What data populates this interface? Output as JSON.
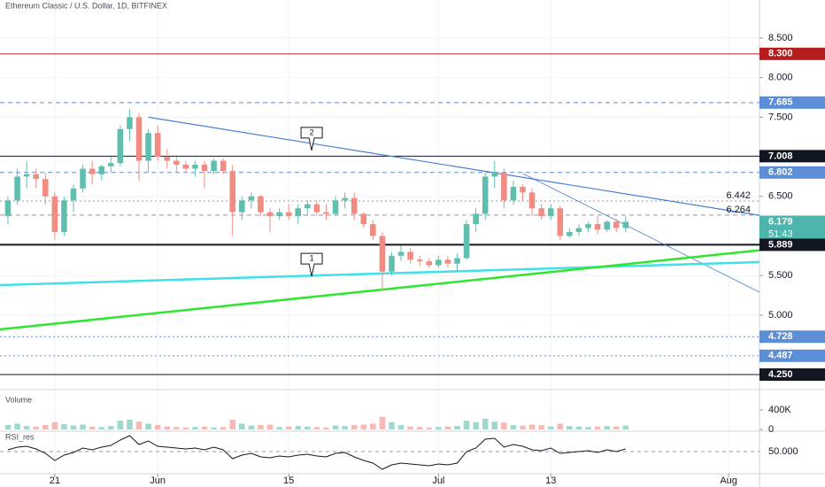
{
  "chart_data": {
    "type": "candlestick",
    "title": "Ethereum Classic / U.S. Dollar, 1D, BITFINEX",
    "up_color": "#5fbfae",
    "down_color": "#f28b82",
    "grid": true,
    "xlim": [
      -0.85,
      80.3
    ],
    "xticks": [
      {
        "value": 5,
        "label": "21"
      },
      {
        "value": 16,
        "label": "Jun"
      },
      {
        "value": 30,
        "label": "15"
      },
      {
        "value": 46,
        "label": "Jul"
      },
      {
        "value": 58,
        "label": "13"
      },
      {
        "value": 77,
        "label": "Aug"
      }
    ],
    "ylim": [
      4.06,
      8.98
    ],
    "yticks": [
      {
        "value": 8.5,
        "label": "8.500"
      },
      {
        "value": 8,
        "label": "8.000"
      },
      {
        "value": 7.5,
        "label": "7.500"
      },
      {
        "value": 6.5,
        "label": "6.500"
      },
      {
        "value": 5.5,
        "label": "5.500"
      },
      {
        "value": 5,
        "label": "5.000"
      }
    ],
    "open": [
      6.25,
      6.45,
      6.75,
      6.78,
      6.72,
      6.5,
      6.05,
      6.45,
      6.6,
      6.85,
      6.78,
      6.88,
      6.92,
      7.35,
      7.5,
      6.95,
      7.3,
      7.0,
      6.95,
      6.9,
      6.85,
      6.9,
      6.82,
      6.95,
      6.82,
      6.3,
      6.45,
      6.5,
      6.3,
      6.25,
      6.3,
      6.25,
      6.35,
      6.4,
      6.3,
      6.28,
      6.45,
      6.48,
      6.28,
      6.15,
      6.0,
      5.55,
      5.75,
      5.8,
      5.7,
      5.68,
      5.63,
      5.7,
      5.65,
      5.72,
      6.15,
      6.28,
      6.75,
      6.8,
      6.45,
      6.62,
      6.55,
      6.35,
      6.25,
      6.35,
      6.0,
      6.05,
      6.1,
      6.15,
      6.08,
      6.18,
      6.1
    ],
    "high": [
      6.5,
      6.85,
      6.95,
      6.85,
      6.8,
      6.55,
      6.5,
      6.65,
      6.9,
      6.95,
      6.9,
      7.0,
      7.4,
      7.6,
      7.55,
      7.35,
      7.4,
      7.1,
      7.0,
      6.95,
      6.95,
      6.95,
      6.98,
      6.98,
      6.9,
      6.5,
      6.55,
      6.52,
      6.35,
      6.35,
      6.4,
      6.4,
      6.45,
      6.45,
      6.4,
      6.5,
      6.55,
      6.55,
      6.3,
      6.2,
      6.05,
      5.8,
      5.88,
      5.85,
      5.75,
      5.72,
      5.75,
      5.75,
      5.78,
      6.2,
      6.35,
      6.8,
      6.95,
      6.85,
      6.7,
      6.65,
      6.6,
      6.4,
      6.4,
      6.38,
      6.1,
      6.15,
      6.18,
      6.25,
      6.2,
      6.22,
      6.25
    ],
    "low": [
      6.15,
      6.4,
      6.6,
      6.6,
      6.4,
      5.95,
      6.0,
      6.3,
      6.55,
      6.65,
      6.7,
      6.8,
      6.88,
      7.2,
      6.7,
      6.8,
      6.95,
      6.85,
      6.8,
      6.8,
      6.75,
      6.6,
      6.78,
      6.78,
      6.0,
      6.2,
      6.35,
      6.25,
      6.05,
      6.2,
      6.2,
      6.15,
      6.25,
      6.25,
      6.2,
      6.25,
      6.35,
      6.2,
      6.1,
      5.95,
      5.3,
      5.5,
      5.68,
      5.65,
      5.62,
      5.6,
      5.6,
      5.6,
      5.55,
      5.7,
      6.05,
      6.2,
      6.6,
      6.35,
      6.4,
      6.45,
      6.25,
      6.2,
      6.2,
      5.95,
      5.98,
      6.0,
      6.05,
      6.02,
      6.05,
      6.05,
      6.05
    ],
    "close": [
      6.45,
      6.75,
      6.78,
      6.72,
      6.5,
      6.05,
      6.45,
      6.6,
      6.85,
      6.78,
      6.88,
      6.92,
      7.35,
      7.5,
      6.95,
      7.3,
      7.0,
      6.95,
      6.9,
      6.85,
      6.9,
      6.82,
      6.95,
      6.82,
      6.3,
      6.45,
      6.5,
      6.3,
      6.25,
      6.3,
      6.25,
      6.35,
      6.4,
      6.3,
      6.28,
      6.45,
      6.48,
      6.28,
      6.15,
      6.0,
      5.55,
      5.75,
      5.8,
      5.7,
      5.68,
      5.63,
      5.7,
      5.65,
      5.72,
      6.15,
      6.28,
      6.75,
      6.8,
      6.45,
      6.62,
      6.55,
      6.35,
      6.25,
      6.35,
      6.0,
      6.05,
      6.1,
      6.15,
      6.08,
      6.18,
      6.1,
      6.179
    ],
    "levels": [
      {
        "value": 8.3,
        "label": "8.300",
        "color": "#b71c1c",
        "style": "solid",
        "badge": true
      },
      {
        "value": 7.685,
        "label": "7.685",
        "color": "#5b8ed6",
        "style": "dashed",
        "badge": true
      },
      {
        "value": 7.008,
        "label": "7.008",
        "color": "#131722",
        "style": "solid",
        "badge": true
      },
      {
        "value": 6.802,
        "label": "6.802",
        "color": "#5b8ed6",
        "style": "dashed",
        "badge": true
      },
      {
        "value": 6.442,
        "label": "6.442",
        "color": "#9598a1",
        "style": "dotted",
        "badge": false
      },
      {
        "value": 6.264,
        "label": "6.264",
        "color": "#9598a1",
        "style": "dashed",
        "badge": false
      },
      {
        "value": 6.179,
        "label": "6.179",
        "color": "#4db6ac",
        "style": "none",
        "badge": true,
        "sublabel": "51:43"
      },
      {
        "value": 5.889,
        "label": "5.889",
        "color": "#131722",
        "style": "thick",
        "badge": true
      },
      {
        "value": 4.728,
        "label": "4.728",
        "color": "#5b8ed6",
        "style": "dotted",
        "badge": true
      },
      {
        "value": 4.487,
        "label": "4.487",
        "color": "#5b8ed6",
        "style": "dotted",
        "badge": true
      },
      {
        "value": 4.25,
        "label": "4.250",
        "color": "#131722",
        "style": "solid",
        "badge": true
      }
    ],
    "trend_lines": [
      {
        "color": "#4a7fd4",
        "width": 1.2,
        "points": [
          [
            15,
            7.5
          ],
          [
            80.3,
            6.26
          ]
        ]
      },
      {
        "color": "#4a7fd4",
        "width": 0.8,
        "points": [
          [
            55,
            6.79
          ],
          [
            80.3,
            5.29
          ]
        ]
      },
      {
        "color": "#3fe0e8",
        "width": 2.5,
        "points": [
          [
            -0.85,
            5.38
          ],
          [
            80.3,
            5.67
          ]
        ]
      },
      {
        "color": "#2ee62e",
        "width": 2.5,
        "points": [
          [
            -0.85,
            4.82
          ],
          [
            80.3,
            5.82
          ]
        ]
      }
    ],
    "callouts": [
      {
        "text": "2",
        "x": 32.45,
        "y": 7.08
      },
      {
        "text": "1",
        "x": 32.45,
        "y": 5.49
      }
    ],
    "volume": {
      "label": "Volume",
      "ylim": [
        0,
        727000
      ],
      "yticks": [
        {
          "value": 400000,
          "label": "400K"
        },
        0
      ],
      "values": [
        90000,
        120000,
        70000,
        60000,
        90000,
        150000,
        110000,
        80000,
        100000,
        60000,
        50000,
        70000,
        180000,
        200000,
        160000,
        120000,
        90000,
        60000,
        50000,
        40000,
        50000,
        60000,
        40000,
        50000,
        200000,
        120000,
        80000,
        90000,
        100000,
        50000,
        60000,
        70000,
        60000,
        50000,
        40000,
        80000,
        70000,
        90000,
        100000,
        120000,
        260000,
        150000,
        90000,
        60000,
        50000,
        40000,
        50000,
        60000,
        70000,
        180000,
        150000,
        220000,
        160000,
        140000,
        90000,
        80000,
        100000,
        90000,
        60000,
        120000,
        70000,
        60000,
        50000,
        60000,
        70000,
        60000,
        80000
      ]
    },
    "rsi": {
      "label": "RSI_res",
      "color": "#131722",
      "ylim": [
        25,
        70
      ],
      "yticks": [
        {
          "value": 50,
          "label": "50.000"
        }
      ],
      "values": [
        52,
        55,
        56,
        53,
        48,
        40,
        46,
        49,
        54,
        52,
        55,
        57,
        63,
        68,
        58,
        62,
        56,
        55,
        54,
        53,
        54,
        52,
        55,
        52,
        42,
        46,
        48,
        44,
        43,
        45,
        44,
        46,
        47,
        45,
        44,
        48,
        49,
        44,
        40,
        37,
        30,
        35,
        37,
        36,
        35,
        34,
        36,
        35,
        37,
        50,
        54,
        64,
        65,
        55,
        58,
        56,
        52,
        51,
        54,
        48,
        49,
        50,
        51,
        49,
        52,
        50,
        53
      ]
    }
  }
}
